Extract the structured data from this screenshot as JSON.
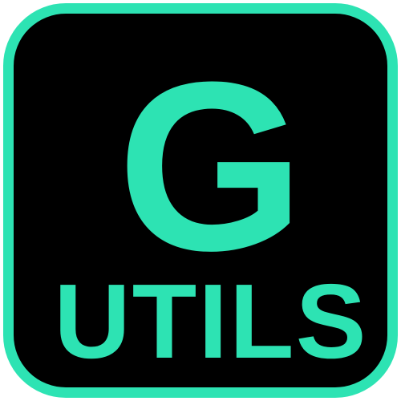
{
  "icon": {
    "letter": "G",
    "word": "UTILS",
    "colors": {
      "accent": "#2de3b3",
      "background": "#000000"
    }
  }
}
